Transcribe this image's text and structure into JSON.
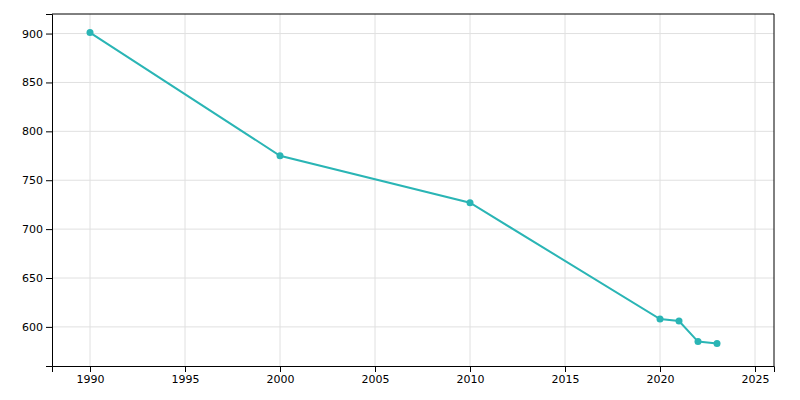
{
  "chart_data": {
    "type": "line",
    "x": [
      1990,
      2000,
      2010,
      2020,
      2021,
      2022,
      2023
    ],
    "values": [
      901,
      775,
      727,
      608,
      606,
      585,
      583
    ],
    "color": "#2ab5b5",
    "marker": "circle",
    "xlim": [
      1988,
      2026
    ],
    "ylim": [
      560,
      920
    ],
    "xticks": [
      1990,
      1995,
      2000,
      2005,
      2010,
      2015,
      2020,
      2025
    ],
    "yticks": [
      600,
      650,
      700,
      750,
      800,
      850,
      900
    ],
    "grid": true
  }
}
